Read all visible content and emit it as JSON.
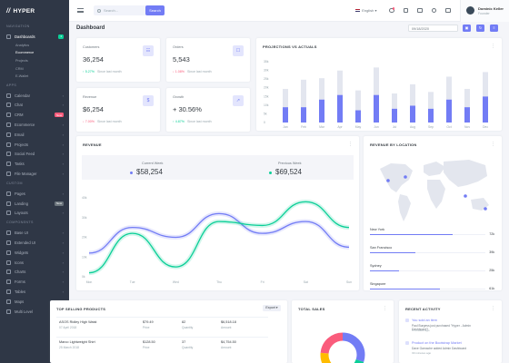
{
  "brand": {
    "name": "HYPER"
  },
  "sidebar": {
    "sections": [
      "NAVIGATION",
      "APPS",
      "CUSTOM",
      "COMPONENTS"
    ],
    "dashboards": {
      "label": "Dashboards",
      "badge": "4"
    },
    "sub": [
      "Analytics",
      "Ecommerce",
      "Projects",
      "CRM",
      "E-Wallet"
    ],
    "apps": [
      {
        "label": "Calendar"
      },
      {
        "label": "Chat"
      },
      {
        "label": "CRM",
        "badge": "New"
      },
      {
        "label": "Ecommerce"
      },
      {
        "label": "Email"
      },
      {
        "label": "Projects"
      },
      {
        "label": "Social Feed"
      },
      {
        "label": "Tasks"
      },
      {
        "label": "File Manager"
      }
    ],
    "custom": [
      {
        "label": "Pages"
      },
      {
        "label": "Landing",
        "badge": "New"
      },
      {
        "label": "Layouts"
      }
    ],
    "components": [
      {
        "label": "Base UI"
      },
      {
        "label": "Extended UI"
      },
      {
        "label": "Widgets"
      },
      {
        "label": "Icons"
      },
      {
        "label": "Charts"
      },
      {
        "label": "Forms"
      },
      {
        "label": "Tables"
      },
      {
        "label": "Maps"
      },
      {
        "label": "Multi Level"
      }
    ]
  },
  "topbar": {
    "search_placeholder": "Search...",
    "search_button": "Search",
    "language": "English",
    "user_name": "Dominic Keller",
    "user_role": "Founder"
  },
  "page": {
    "title": "Dashboard",
    "date": "09/18/2020"
  },
  "stats": [
    {
      "title": "Customers",
      "value": "36,254",
      "change": "5.27%",
      "dir": "up",
      "since": "Since last month",
      "icon": "☷"
    },
    {
      "title": "Orders",
      "value": "5,543",
      "change": "1.08%",
      "dir": "down",
      "since": "Since last month",
      "icon": "☐"
    },
    {
      "title": "Revenue",
      "value": "$6,254",
      "change": "7.00%",
      "dir": "down",
      "since": "Since last month",
      "icon": "$"
    },
    {
      "title": "Growth",
      "value": "+ 30.56%",
      "change": "4.87%",
      "dir": "up",
      "since": "Since last month",
      "icon": "↗"
    }
  ],
  "projections": {
    "title": "PROJECTIONS VS ACTUALS",
    "chart_data": {
      "type": "bar",
      "categories": [
        "Jan",
        "Feb",
        "Mar",
        "Apr",
        "May",
        "Jun",
        "Jul",
        "Aug",
        "Sep",
        "Oct",
        "Nov",
        "Dec"
      ],
      "ylim": [
        0,
        35
      ],
      "yticks": [
        "0",
        "5k",
        "10k",
        "15k",
        "20k",
        "25k",
        "30k",
        "35k"
      ],
      "series": [
        {
          "values": [
            12,
            18,
            14,
            16,
            13,
            18,
            10,
            14,
            11,
            15,
            12,
            16
          ]
        },
        {
          "values": [
            10,
            10,
            15,
            18,
            8,
            18,
            9,
            11,
            9,
            15,
            10,
            17
          ]
        }
      ]
    }
  },
  "revenue": {
    "title": "REVENUE",
    "current_label": "Current Week",
    "current_value": "$58,254",
    "previous_label": "Previous Week",
    "previous_value": "$69,524",
    "chart_data": {
      "type": "line",
      "categories": [
        "Mon",
        "Tue",
        "Wed",
        "Thu",
        "Fri",
        "Sat",
        "Sun"
      ],
      "ylim": [
        0,
        40
      ],
      "yticks": [
        "0k",
        "10k",
        "20k",
        "30k",
        "40k"
      ],
      "series": [
        {
          "values": [
            12,
            25,
            20,
            32,
            22,
            28,
            15
          ]
        },
        {
          "values": [
            2,
            22,
            5,
            28,
            26,
            38,
            25
          ]
        }
      ]
    }
  },
  "location": {
    "title": "REVENUE BY LOCATION",
    "items": [
      {
        "name": "New York",
        "value": "72k",
        "pct": 0.72
      },
      {
        "name": "San Francisco",
        "value": "39k",
        "pct": 0.39
      },
      {
        "name": "Sydney",
        "value": "25k",
        "pct": 0.25
      },
      {
        "name": "Singapore",
        "value": "61k",
        "pct": 0.61
      }
    ]
  },
  "products": {
    "title": "TOP SELLING PRODUCTS",
    "export": "Export",
    "rows": [
      {
        "name": "ASOS Ridley High Waist",
        "date": "07 April 2018",
        "price": "$79.49",
        "qty": "82",
        "amount": "$6,518.18",
        "price_l": "Price",
        "qty_l": "Quantity",
        "amount_l": "Amount"
      },
      {
        "name": "Marco Lightweight Shirt",
        "date": "25 March 2018",
        "price": "$128.50",
        "qty": "37",
        "amount": "$4,754.50",
        "price_l": "Price",
        "qty_l": "Quantity",
        "amount_l": "Amount"
      }
    ]
  },
  "total_sales": {
    "title": "TOTAL SALES"
  },
  "activity": {
    "title": "RECENT ACTIVITY",
    "items": [
      {
        "title": "You sold an item",
        "desc": "Paul Burgess just purchased \"Hyper - Admin Dashboard\"!",
        "time": "5 minutes ago"
      },
      {
        "title": "Product on the Bootstrap Market",
        "desc": "Dave Gamache added Admin Dashboard",
        "time": "30 minutes ago"
      }
    ]
  },
  "colors": {
    "primary": "#727cf5",
    "success": "#0acf97",
    "danger": "#fa5c7c",
    "sidebar": "#2f3746"
  }
}
